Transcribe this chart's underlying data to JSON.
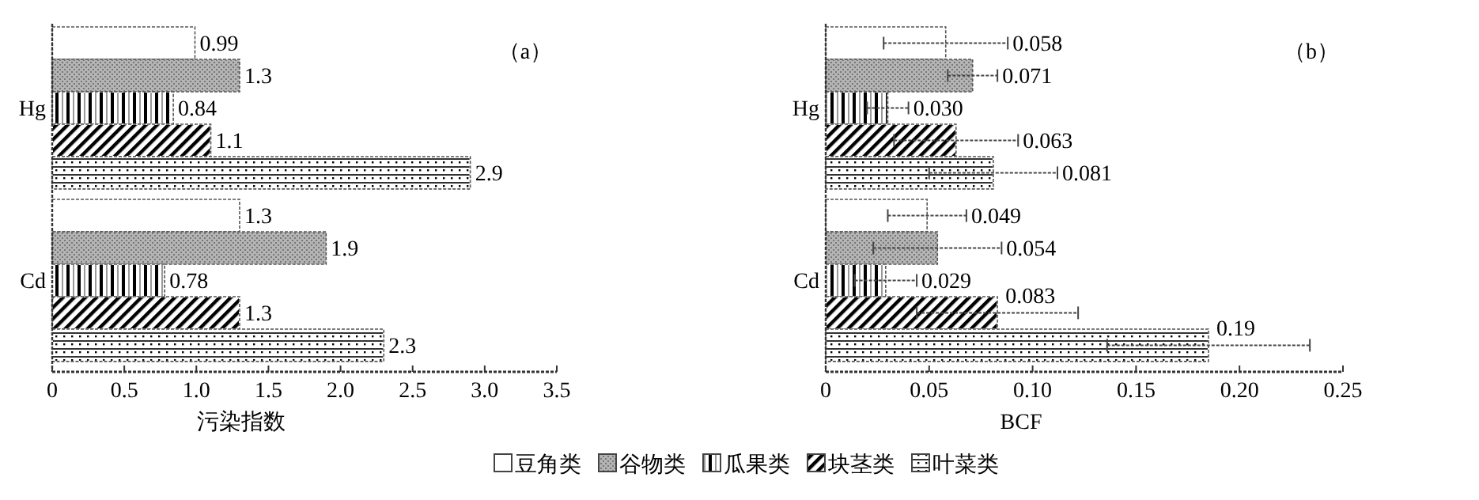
{
  "chart_data": [
    {
      "type": "bar",
      "orientation": "horizontal",
      "title": "（a）",
      "xlabel": "污染指数",
      "categories": [
        "Hg",
        "Cd"
      ],
      "xlim": [
        0,
        3.5
      ],
      "xticks": [
        0,
        0.5,
        {
          "value": 1,
          "label": "1.0"
        },
        1.5,
        {
          "value": 2,
          "label": "2.0"
        },
        2.5,
        {
          "value": 3,
          "label": "3.0"
        },
        3.5
      ],
      "data_labels": true,
      "legend": "bottom",
      "grid": false,
      "series": [
        {
          "name": "豆角类",
          "color": "#ffffff",
          "values": [
            0.99,
            1.3
          ]
        },
        {
          "name": "谷物类",
          "color": "#b4b4b4",
          "values": [
            1.3,
            1.9
          ]
        },
        {
          "name": "瓜果类",
          "color": "#ffffff",
          "values": [
            0.84,
            0.78
          ]
        },
        {
          "name": "块茎类",
          "color": "#ffffff",
          "values": [
            1.1,
            1.3
          ]
        },
        {
          "name": "叶菜类",
          "color": "#ffffff",
          "values": [
            2.9,
            2.3
          ]
        }
      ]
    },
    {
      "type": "bar",
      "orientation": "horizontal",
      "title": "（b）",
      "xlabel": "BCF",
      "categories": [
        "Hg",
        "Cd"
      ],
      "xlim": [
        0,
        0.25
      ],
      "xticks": [
        0,
        0.05,
        {
          "value": 0.1,
          "label": "0.10"
        },
        0.15,
        {
          "value": 0.2,
          "label": "0.20"
        },
        0.25
      ],
      "grid": false,
      "series": [
        {
          "color": "#ffffff",
          "values": [
            0.058,
            0.049
          ],
          "errors": [
            0.03,
            0.019
          ],
          "value_labels": [
            "0.058",
            "0.049"
          ]
        },
        {
          "color": "#b4b4b4",
          "values": [
            0.071,
            0.054
          ],
          "errors": [
            0.012,
            0.031
          ],
          "value_labels": [
            "0.071",
            "0.054"
          ]
        },
        {
          "color": "#ffffff",
          "values": [
            0.03,
            0.029
          ],
          "errors": [
            0.01,
            0.015
          ],
          "value_labels": [
            "0.030",
            "0.029"
          ]
        },
        {
          "color": "#ffffff",
          "values": [
            0.063,
            0.083
          ],
          "errors": [
            0.03,
            0.039
          ],
          "value_labels": [
            "0.063",
            "0.083"
          ]
        },
        {
          "color": "#ffffff",
          "values": [
            0.081,
            0.185
          ],
          "errors": [
            0.031,
            0.049
          ],
          "value_labels": [
            "0.081",
            "0.19"
          ]
        }
      ]
    }
  ]
}
